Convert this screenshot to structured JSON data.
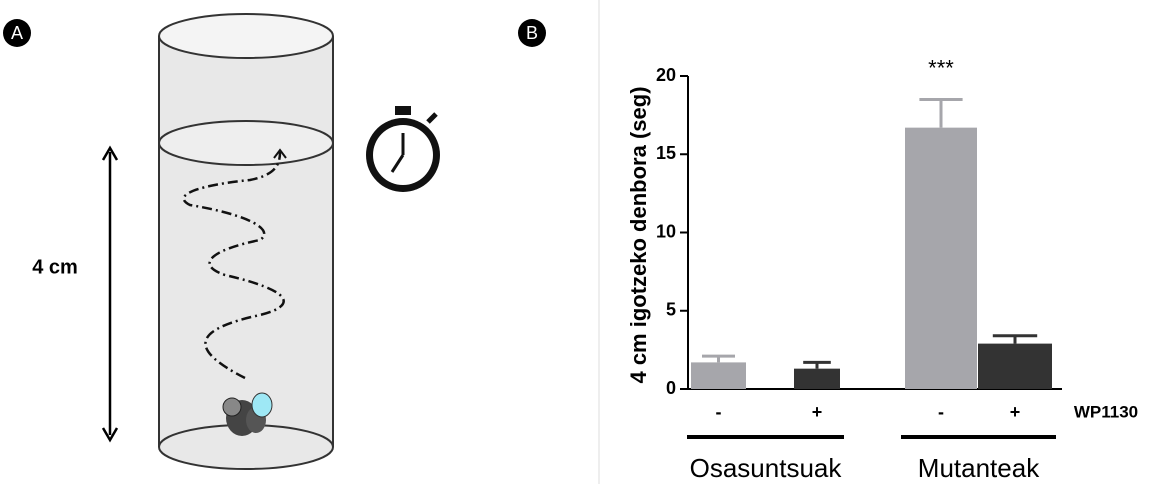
{
  "panels": {
    "a_label": "A",
    "b_label": "B"
  },
  "diagram": {
    "height_label": "4 cm"
  },
  "chart_data": {
    "type": "bar",
    "ylabel": "4 cm igotzeko denbora  (seg)",
    "categories": [
      "-",
      "+",
      "-",
      "+"
    ],
    "values": [
      1.7,
      1.3,
      16.7,
      2.9
    ],
    "errors": [
      0.4,
      0.4,
      1.8,
      0.5
    ],
    "colors": [
      "#a6a6ab",
      "#333333",
      "#a6a6ab",
      "#333333"
    ],
    "treatment_label": "WP1130",
    "groups": [
      "Osasuntsuak",
      "Mutanteak"
    ],
    "annotations": [
      {
        "category": 2,
        "text": "***"
      }
    ],
    "ylim": [
      0,
      20
    ],
    "yticks": [
      0,
      5,
      10,
      15,
      20
    ]
  }
}
